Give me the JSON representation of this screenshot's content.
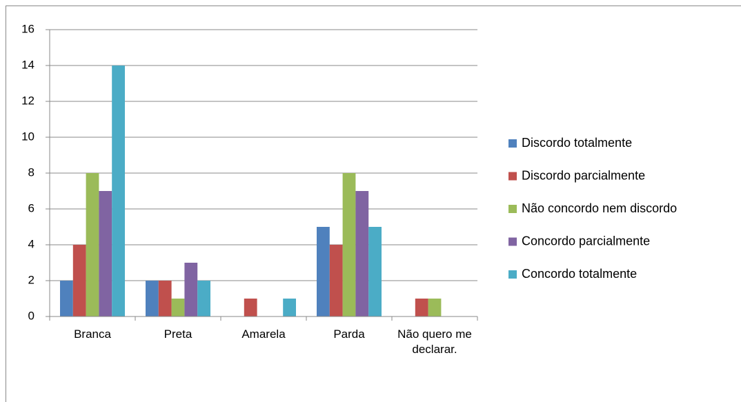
{
  "chart_data": {
    "type": "bar",
    "categories": [
      "Branca",
      "Preta",
      "Amarela",
      "Parda",
      "Não quero me declarar."
    ],
    "series": [
      {
        "name": "Discordo totalmente",
        "color": "#4f81bd",
        "values": [
          2,
          2,
          0,
          5,
          0
        ]
      },
      {
        "name": "Discordo parcialmente",
        "color": "#c0504d",
        "values": [
          4,
          2,
          1,
          4,
          1
        ]
      },
      {
        "name": "Não concordo nem discordo",
        "color": "#9bbb59",
        "values": [
          8,
          1,
          0,
          8,
          1
        ]
      },
      {
        "name": "Concordo parcialmente",
        "color": "#8064a2",
        "values": [
          7,
          3,
          0,
          7,
          0
        ]
      },
      {
        "name": "Concordo totalmente",
        "color": "#4bacc6",
        "values": [
          14,
          2,
          1,
          5,
          0
        ]
      }
    ],
    "ylim": [
      0,
      16
    ],
    "yticks": [
      0,
      2,
      4,
      6,
      8,
      10,
      12,
      14,
      16
    ],
    "grid": true,
    "legend": "right"
  }
}
